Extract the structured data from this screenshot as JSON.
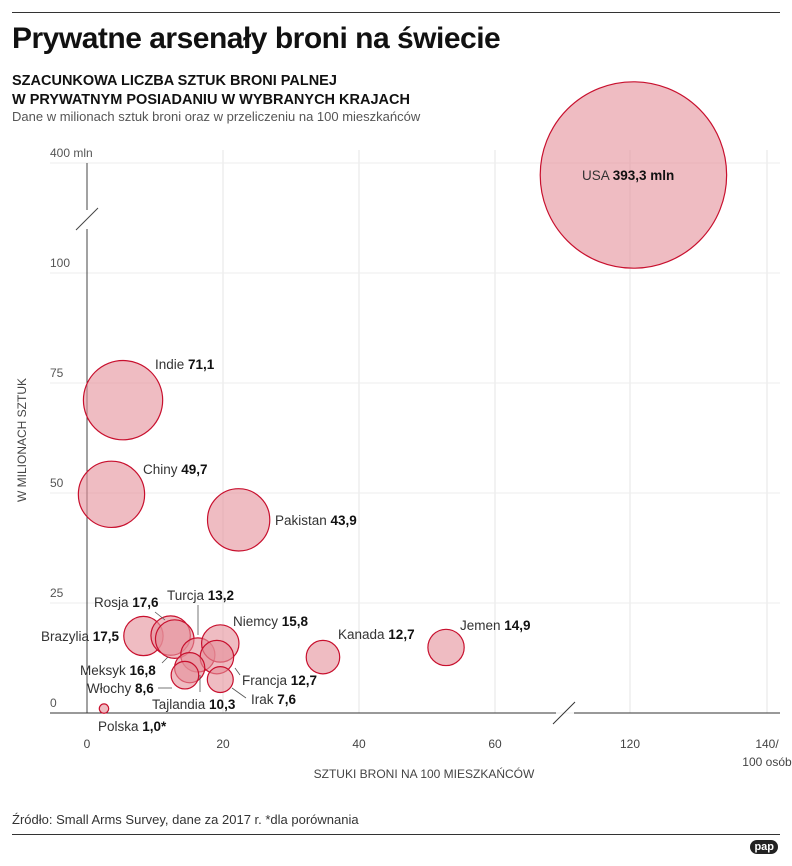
{
  "title": "Prywatne arsenały broni na świecie",
  "subtitle_line1": "SZACUNKOWA LICZBA SZTUK BRONI PALNEJ",
  "subtitle_line2": "W PRYWATNYM POSIADANIU W WYBRANYCH KRAJACH",
  "description": "Dane w milionach sztuk broni oraz w przeliczeniu na 100 mieszkańców",
  "source": "Źródło: Small Arms Survey, dane za 2017 r. *dla porównania",
  "logo": "pap",
  "colors": {
    "fill": "#e48f99",
    "stroke": "#c8102e"
  },
  "chart_data": {
    "type": "scatter",
    "bubble": true,
    "xlabel": "SZTUKI BRONI NA 100 MIESZKAŃCÓW",
    "ylabel": "W MILIONACH SZTUK",
    "x_ticks": [
      "0",
      "20",
      "40",
      "60",
      "120",
      "140/"
    ],
    "x_tick_suffix": "100 osób",
    "y_ticks": [
      "0",
      "25",
      "50",
      "75",
      "100",
      "400 mln"
    ],
    "x_axis_break": [
      60,
      120
    ],
    "y_axis_break": [
      100,
      400
    ],
    "points": [
      {
        "name": "USA",
        "x": 120.5,
        "y": 393.3,
        "label": "393,3 mln"
      },
      {
        "name": "Indie",
        "x": 5.3,
        "y": 71.1,
        "label": "71,1"
      },
      {
        "name": "Chiny",
        "x": 3.6,
        "y": 49.7,
        "label": "49,7"
      },
      {
        "name": "Pakistan",
        "x": 22.3,
        "y": 43.9,
        "label": "43,9"
      },
      {
        "name": "Jemen",
        "x": 52.8,
        "y": 14.9,
        "label": "14,9"
      },
      {
        "name": "Kanada",
        "x": 34.7,
        "y": 12.7,
        "label": "12,7"
      },
      {
        "name": "Brazylia",
        "x": 8.3,
        "y": 17.5,
        "label": "17,5"
      },
      {
        "name": "Rosja",
        "x": 12.3,
        "y": 17.6,
        "label": "17,6"
      },
      {
        "name": "Meksyk",
        "x": 12.9,
        "y": 16.8,
        "label": "16,8"
      },
      {
        "name": "Turcja",
        "x": 16.3,
        "y": 13.2,
        "label": "13,2"
      },
      {
        "name": "Niemcy",
        "x": 19.6,
        "y": 15.8,
        "label": "15,8"
      },
      {
        "name": "Francja",
        "x": 19.1,
        "y": 12.7,
        "label": "12,7"
      },
      {
        "name": "Tajlandia",
        "x": 15.1,
        "y": 10.3,
        "label": "10,3"
      },
      {
        "name": "Włochy",
        "x": 14.4,
        "y": 8.6,
        "label": "8,6"
      },
      {
        "name": "Irak",
        "x": 19.6,
        "y": 7.6,
        "label": "7,6"
      },
      {
        "name": "Polska",
        "x": 2.5,
        "y": 1.0,
        "label": "1,0*"
      }
    ]
  }
}
